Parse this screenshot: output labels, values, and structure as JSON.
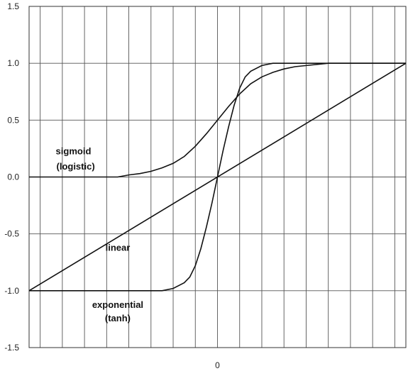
{
  "chart_data": {
    "type": "line",
    "title": "",
    "xlabel": "",
    "ylabel": "",
    "xlim": [
      -8.5,
      8.5
    ],
    "ylim": [
      -1.5,
      1.5
    ],
    "y_ticks": [
      "1.5",
      "1.0",
      "0.5",
      "0.0",
      "-0.5",
      "-1.0",
      "-1.5"
    ],
    "y_tick_values": [
      1.5,
      1.0,
      0.5,
      0.0,
      -0.5,
      -1.0,
      -1.5
    ],
    "x_ticks": [
      "0"
    ],
    "x_tick_values": [
      0
    ],
    "grid": true,
    "vertical_gridlines": 17,
    "series": [
      {
        "key": "sigmoid",
        "x": [
          -8.5,
          -4.5,
          -4,
          -3.5,
          -3,
          -2.5,
          -2,
          -1.5,
          -1,
          -0.5,
          0,
          0.5,
          1,
          1.5,
          2,
          2.5,
          3,
          3.5,
          4,
          5,
          8.5
        ],
        "y": [
          0.0,
          0.0,
          0.018,
          0.03,
          0.05,
          0.08,
          0.12,
          0.18,
          0.27,
          0.38,
          0.5,
          0.62,
          0.73,
          0.82,
          0.88,
          0.92,
          0.95,
          0.97,
          0.98,
          1.0,
          1.0
        ]
      },
      {
        "key": "tanh",
        "x": [
          -8.5,
          -2.5,
          -2,
          -1.5,
          -1.25,
          -1,
          -0.75,
          -0.5,
          -0.25,
          0,
          0.25,
          0.5,
          0.75,
          1,
          1.25,
          1.5,
          2,
          2.5,
          8.5
        ],
        "y": [
          -1.0,
          -1.0,
          -0.98,
          -0.93,
          -0.88,
          -0.78,
          -0.63,
          -0.44,
          -0.23,
          0.0,
          0.23,
          0.44,
          0.63,
          0.78,
          0.88,
          0.93,
          0.98,
          1.0,
          1.0
        ]
      },
      {
        "key": "linear",
        "x": [
          -8.5,
          8.5
        ],
        "y": [
          -1.0,
          1.0
        ]
      }
    ],
    "annotations": [
      {
        "key": "sigmoid_line1",
        "text": "sigmoid",
        "x": -6.5,
        "y": 0.2
      },
      {
        "key": "sigmoid_line2",
        "text": "(logistic)",
        "x": -6.4,
        "y": 0.065
      },
      {
        "key": "linear",
        "text": "linear",
        "x": -4.5,
        "y": -0.65
      },
      {
        "key": "exponential_line1",
        "text": "exponential",
        "x": -4.5,
        "y": -1.15
      },
      {
        "key": "exponential_line2",
        "text": "(tanh)",
        "x": -4.5,
        "y": -1.27
      }
    ]
  }
}
